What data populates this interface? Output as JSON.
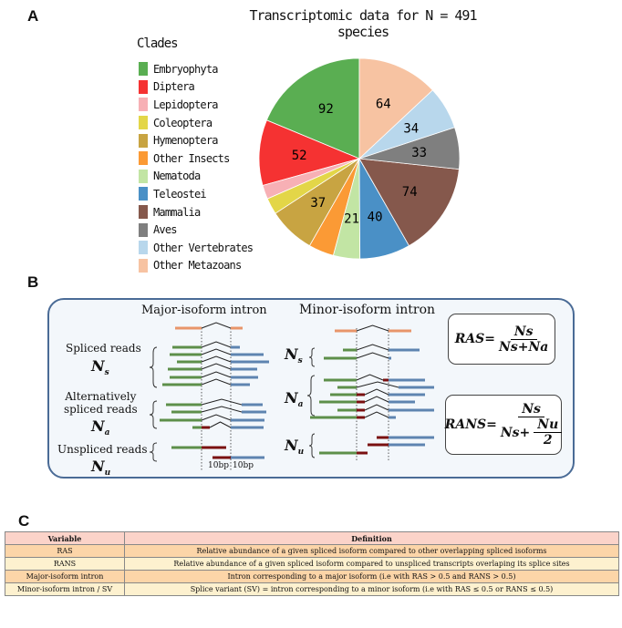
{
  "panels": {
    "a": "A",
    "b": "B",
    "c": "C"
  },
  "chart_data": {
    "type": "pie",
    "title": "Transcriptomic data for N = 491 species",
    "legend_title": "Clades",
    "legend_placement": "left",
    "start": "top, counterclockwise",
    "slices": [
      {
        "label": "Embryophyta",
        "value": 92,
        "color": "#5aae52",
        "shown": "92"
      },
      {
        "label": "Diptera",
        "value": 52,
        "color": "#f53232",
        "shown": "52"
      },
      {
        "label": "Lepidoptera",
        "value": 11,
        "color": "#f7b0b5",
        "shown": ""
      },
      {
        "label": "Coleoptera",
        "value": 13,
        "color": "#e3d648",
        "shown": ""
      },
      {
        "label": "Hymenoptera",
        "value": 37,
        "color": "#c8a442",
        "shown": "37"
      },
      {
        "label": "Other Insects",
        "value": 20,
        "color": "#fb9a35",
        "shown": ""
      },
      {
        "label": "Nematoda",
        "value": 21,
        "color": "#c2e5a4",
        "shown": "21"
      },
      {
        "label": "Teleostei",
        "value": 40,
        "color": "#4a90c6",
        "shown": "40"
      },
      {
        "label": "Mammalia",
        "value": 74,
        "color": "#85584c",
        "shown": "74"
      },
      {
        "label": "Aves",
        "value": 33,
        "color": "#7f7f7f",
        "shown": "33"
      },
      {
        "label": "Other Vertebrates",
        "value": 34,
        "color": "#b8d7ec",
        "shown": "34"
      },
      {
        "label": "Other Metazoans",
        "value": 64,
        "color": "#f7c3a2",
        "shown": "64"
      }
    ]
  },
  "panel_b": {
    "major_title": "Major-isoform intron",
    "minor_title": "Minor-isoform intron",
    "spliced_reads": "Spliced reads",
    "alt_spliced_1": "Alternatively",
    "alt_spliced_2": "spliced reads",
    "unspliced_reads": "Unspliced reads",
    "ns": "N",
    "ns_sub": "s",
    "na": "N",
    "na_sub": "a",
    "nu": "N",
    "nu_sub": "u",
    "bp_left": "10bp",
    "bp_right": "10bp",
    "ras": {
      "lhs": "RAS",
      "eq": "=",
      "num": "Ns",
      "den": "Ns+Na"
    },
    "rans": {
      "lhs": "RANS",
      "eq": "=",
      "num": "Ns",
      "den_a": "Ns+",
      "den_num": "Nu",
      "den_den": "2"
    },
    "colors": {
      "exon": "#e8956a",
      "left_read": "#5d8f4a",
      "right_read": "#5e84b0",
      "unspliced": "#7a1010",
      "border": "#4a6b96"
    }
  },
  "table": {
    "headers": [
      "Variable",
      "Definition"
    ],
    "rows": [
      [
        "RAS",
        "Relative abundance of a given spliced isoform compared to other overlapping spliced isoforms"
      ],
      [
        "RANS",
        "Relative abundance of a given spliced isoform compared to unspliced transcripts overlaping its splice sites"
      ],
      [
        "Major-isoform intron",
        "Intron corresponding to a major isoform (i.e with RAS > 0.5 and RANS > 0.5)"
      ],
      [
        "Minor-isoform intron / SV",
        "Splice variant (SV) = intron corresponding to a minor isoform  (i.e with RAS ≤ 0.5 or RANS ≤ 0.5)"
      ]
    ]
  }
}
